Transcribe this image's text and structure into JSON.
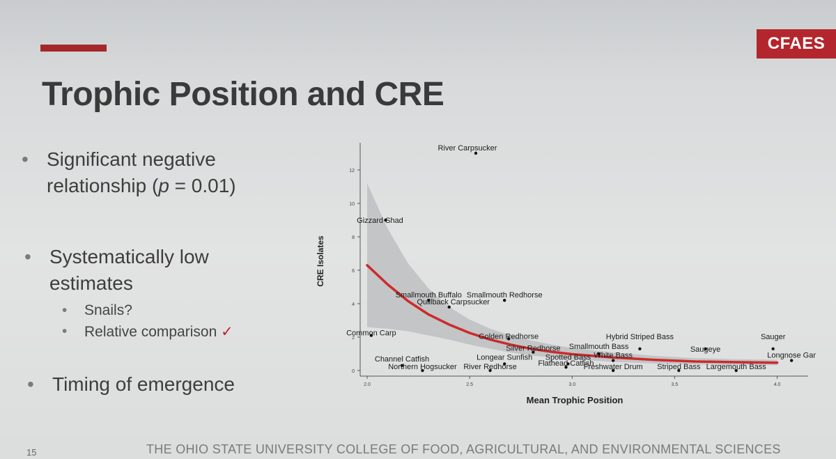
{
  "slide": {
    "logo": "CFAES",
    "title": "Trophic Position and CRE",
    "bullet1_line1": "Significant negative",
    "bullet1_line2_pre": "relationship (",
    "bullet1_line2_p": "p",
    "bullet1_line2_post": " = 0.01)",
    "bullet2_line1": "Systematically low",
    "bullet2_line2": "estimates",
    "sub1": "Snails?",
    "sub2": "Relative comparison",
    "sub2_mark": "✓",
    "bullet3": "Timing of emergence",
    "slide_number": "15",
    "footer": "THE OHIO STATE UNIVERSITY COLLEGE OF FOOD, AGRICULTURAL, AND ENVIRONMENTAL SCIENCES",
    "bullet_glyph": "•"
  },
  "colors": {
    "accent": "#a5272c",
    "fit_line": "#cc2a2a",
    "confidence_band": "#b9bbbd"
  },
  "chart_data": {
    "type": "scatter",
    "xlabel": "Mean Trophic Position",
    "ylabel": "CRE Isolates",
    "xlim": [
      2.0,
      4.1
    ],
    "ylim": [
      0,
      13
    ],
    "x_ticks": [
      2.0,
      2.5,
      3.0,
      3.5,
      4.0
    ],
    "x_tick_labels": [
      "2.0",
      "2.5",
      "3.0",
      "3.5",
      "4.0"
    ],
    "y_ticks": [
      0,
      2,
      4,
      6,
      8,
      10,
      12
    ],
    "y_tick_labels": [
      "0",
      "2",
      "4",
      "6",
      "8",
      "10",
      "12"
    ],
    "grid": false,
    "points": [
      {
        "label": "River Carpsucker",
        "x": 2.53,
        "y": 13
      },
      {
        "label": "Gizzard Shad",
        "x": 2.09,
        "y": 9
      },
      {
        "label": "Smallmouth Buffalo",
        "x": 2.3,
        "y": 4.2
      },
      {
        "label": "Smallmouth Redhorse",
        "x": 2.67,
        "y": 4.2
      },
      {
        "label": "Quillback Carpsucker",
        "x": 2.4,
        "y": 3.8
      },
      {
        "label": "Common Carp",
        "x": 2.02,
        "y": 2.1
      },
      {
        "label": "Golden Redhorse",
        "x": 2.69,
        "y": 1.9
      },
      {
        "label": "Silver Redhorse",
        "x": 2.81,
        "y": 1.1
      },
      {
        "label": "Smallmouth Bass",
        "x": 3.13,
        "y": 1.0
      },
      {
        "label": "Hybrid Striped Bass",
        "x": 3.33,
        "y": 1.3
      },
      {
        "label": "Saugeye",
        "x": 3.65,
        "y": 1.3
      },
      {
        "label": "Sauger",
        "x": 3.98,
        "y": 1.3
      },
      {
        "label": "Channel Catfish",
        "x": 2.17,
        "y": 0.3
      },
      {
        "label": "Longear Sunfish",
        "x": 2.67,
        "y": 0.4
      },
      {
        "label": "Spotted Bass",
        "x": 2.98,
        "y": 0.4
      },
      {
        "label": "White Bass",
        "x": 3.2,
        "y": 0.6
      },
      {
        "label": "Longnose Gar",
        "x": 4.07,
        "y": 0.6
      },
      {
        "label": "Northern Hogsucker",
        "x": 2.27,
        "y": 0.0
      },
      {
        "label": "River Redhorse",
        "x": 2.6,
        "y": 0.0
      },
      {
        "label": "Flathead Catfish",
        "x": 2.97,
        "y": 0.2
      },
      {
        "label": "Freshwater Drum",
        "x": 3.2,
        "y": 0.0
      },
      {
        "label": "Striped Bass",
        "x": 3.52,
        "y": 0.0
      },
      {
        "label": "Largemouth Bass",
        "x": 3.8,
        "y": 0.0
      }
    ],
    "fit_curve": {
      "x": [
        2.0,
        2.1,
        2.2,
        2.3,
        2.4,
        2.5,
        2.6,
        2.7,
        2.8,
        2.9,
        3.0,
        3.2,
        3.4,
        3.6,
        3.8,
        4.0
      ],
      "y": [
        6.3,
        5.15,
        4.15,
        3.35,
        2.75,
        2.25,
        1.85,
        1.55,
        1.3,
        1.12,
        0.98,
        0.78,
        0.64,
        0.54,
        0.5,
        0.47
      ]
    },
    "confidence_band": {
      "x": [
        2.0,
        2.1,
        2.2,
        2.3,
        2.4,
        2.5,
        2.6,
        2.7,
        2.8,
        2.9,
        3.0,
        3.2,
        3.4,
        3.6,
        3.8,
        4.0
      ],
      "upper": [
        11.2,
        8.5,
        6.4,
        4.9,
        3.8,
        3.05,
        2.5,
        2.1,
        1.8,
        1.55,
        1.35,
        1.08,
        0.88,
        0.74,
        0.68,
        0.64
      ],
      "lower": [
        2.6,
        2.5,
        2.35,
        2.1,
        1.85,
        1.55,
        1.3,
        1.08,
        0.9,
        0.78,
        0.68,
        0.52,
        0.42,
        0.37,
        0.34,
        0.32
      ]
    }
  }
}
